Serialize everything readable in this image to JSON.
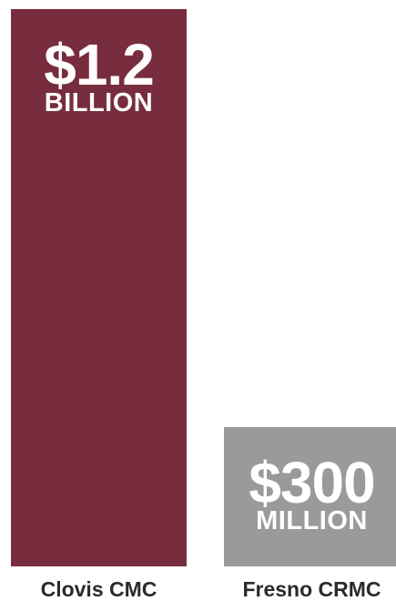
{
  "chart_data": {
    "type": "bar",
    "categories": [
      "Clovis CMC",
      "Fresno CRMC"
    ],
    "values": [
      1200,
      300
    ],
    "value_unit": "millions USD",
    "ylim": [
      0,
      1200
    ],
    "grid": false,
    "bars": [
      {
        "category": "Clovis CMC",
        "value": 1200,
        "label_amount": "$1.2",
        "label_unit": "BILLION",
        "color": "#782d3f"
      },
      {
        "category": "Fresno CRMC",
        "value": 300,
        "label_amount": "$300",
        "label_unit": "MILLION",
        "color": "#9a9a9c"
      }
    ]
  }
}
